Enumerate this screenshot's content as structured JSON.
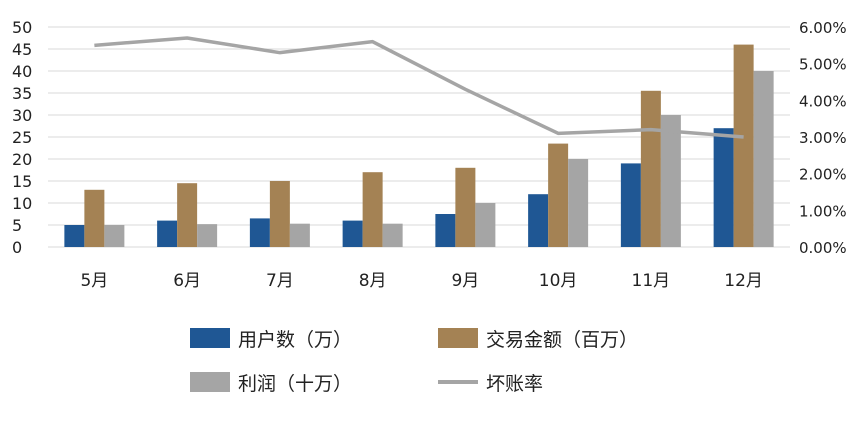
{
  "chart_data": {
    "type": "bar",
    "categories": [
      "5月",
      "6月",
      "7月",
      "8月",
      "9月",
      "10月",
      "11月",
      "12月"
    ],
    "series": [
      {
        "name": "用户数（万）",
        "kind": "bar",
        "axis": "left",
        "color": "#1f5794",
        "values": [
          5,
          6,
          6.5,
          6,
          7.5,
          12,
          19,
          27
        ]
      },
      {
        "name": "交易金额（百万）",
        "kind": "bar",
        "axis": "left",
        "color": "#a48254",
        "values": [
          13,
          14.5,
          15,
          17,
          18,
          23.5,
          35.5,
          46
        ]
      },
      {
        "name": "利润（十万）",
        "kind": "bar",
        "axis": "left",
        "color": "#a5a5a5",
        "values": [
          5,
          5.2,
          5.3,
          5.3,
          10,
          20,
          30,
          40
        ]
      },
      {
        "name": "坏账率",
        "kind": "line",
        "axis": "right",
        "color": "#a5a5a5",
        "values": [
          0.055,
          0.057,
          0.053,
          0.056,
          0.043,
          0.031,
          0.032,
          0.03
        ]
      }
    ],
    "y_left": {
      "min": 0,
      "max": 50,
      "ticks": [
        "0",
        "5",
        "10",
        "15",
        "20",
        "25",
        "30",
        "35",
        "40",
        "45",
        "50"
      ]
    },
    "y_right": {
      "min": 0,
      "max": 0.06,
      "ticks": [
        "0.00%",
        "1.00%",
        "2.00%",
        "3.00%",
        "4.00%",
        "5.00%",
        "6.00%"
      ]
    },
    "grid": true,
    "legend_position": "bottom"
  }
}
